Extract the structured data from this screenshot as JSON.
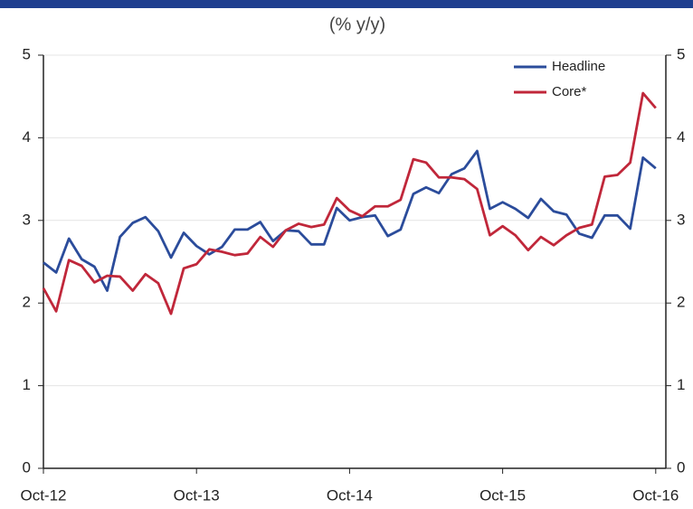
{
  "chart_data": {
    "type": "line",
    "subtitle": "(% y/y)",
    "categories": [
      "Oct-12",
      null,
      null,
      null,
      null,
      null,
      null,
      null,
      null,
      null,
      null,
      null,
      "Oct-13",
      null,
      null,
      null,
      null,
      null,
      null,
      null,
      null,
      null,
      null,
      null,
      "Oct-14",
      null,
      null,
      null,
      null,
      null,
      null,
      null,
      null,
      null,
      null,
      null,
      "Oct-15",
      null,
      null,
      null,
      null,
      null,
      null,
      null,
      null,
      null,
      null,
      null,
      "Oct-16"
    ],
    "series": [
      {
        "name": "Headline",
        "color": "#2b4c9b",
        "values": [
          2.49,
          2.37,
          2.78,
          2.53,
          2.44,
          2.15,
          2.8,
          2.97,
          3.04,
          2.87,
          2.55,
          2.85,
          2.69,
          2.59,
          2.68,
          2.89,
          2.89,
          2.98,
          2.75,
          2.88,
          2.87,
          2.71,
          2.71,
          3.15,
          3.0,
          3.04,
          3.06,
          2.81,
          2.89,
          3.32,
          3.4,
          3.33,
          3.56,
          3.63,
          3.84,
          3.14,
          3.22,
          3.14,
          3.03,
          3.26,
          3.11,
          3.07,
          2.84,
          2.79,
          3.06,
          3.06,
          2.9,
          3.76,
          3.63
        ]
      },
      {
        "name": "Core*",
        "color": "#c0273a",
        "values": [
          2.18,
          1.9,
          2.52,
          2.45,
          2.25,
          2.33,
          2.32,
          2.15,
          2.35,
          2.24,
          1.87,
          2.42,
          2.47,
          2.65,
          2.62,
          2.58,
          2.6,
          2.8,
          2.68,
          2.88,
          2.96,
          2.92,
          2.95,
          3.27,
          3.12,
          3.05,
          3.17,
          3.17,
          3.25,
          3.74,
          3.7,
          3.52,
          3.52,
          3.5,
          3.38,
          2.82,
          2.93,
          2.82,
          2.64,
          2.8,
          2.7,
          2.82,
          2.91,
          2.95,
          3.53,
          3.55,
          3.7,
          4.54,
          4.36
        ]
      }
    ],
    "ylim": [
      0,
      5
    ],
    "yticks": [
      0,
      1,
      2,
      3,
      4,
      5
    ],
    "y2lim": [
      0,
      5
    ],
    "y2ticks": [
      0,
      1,
      2,
      3,
      4,
      5
    ],
    "grid": true,
    "legend": "top-right"
  }
}
